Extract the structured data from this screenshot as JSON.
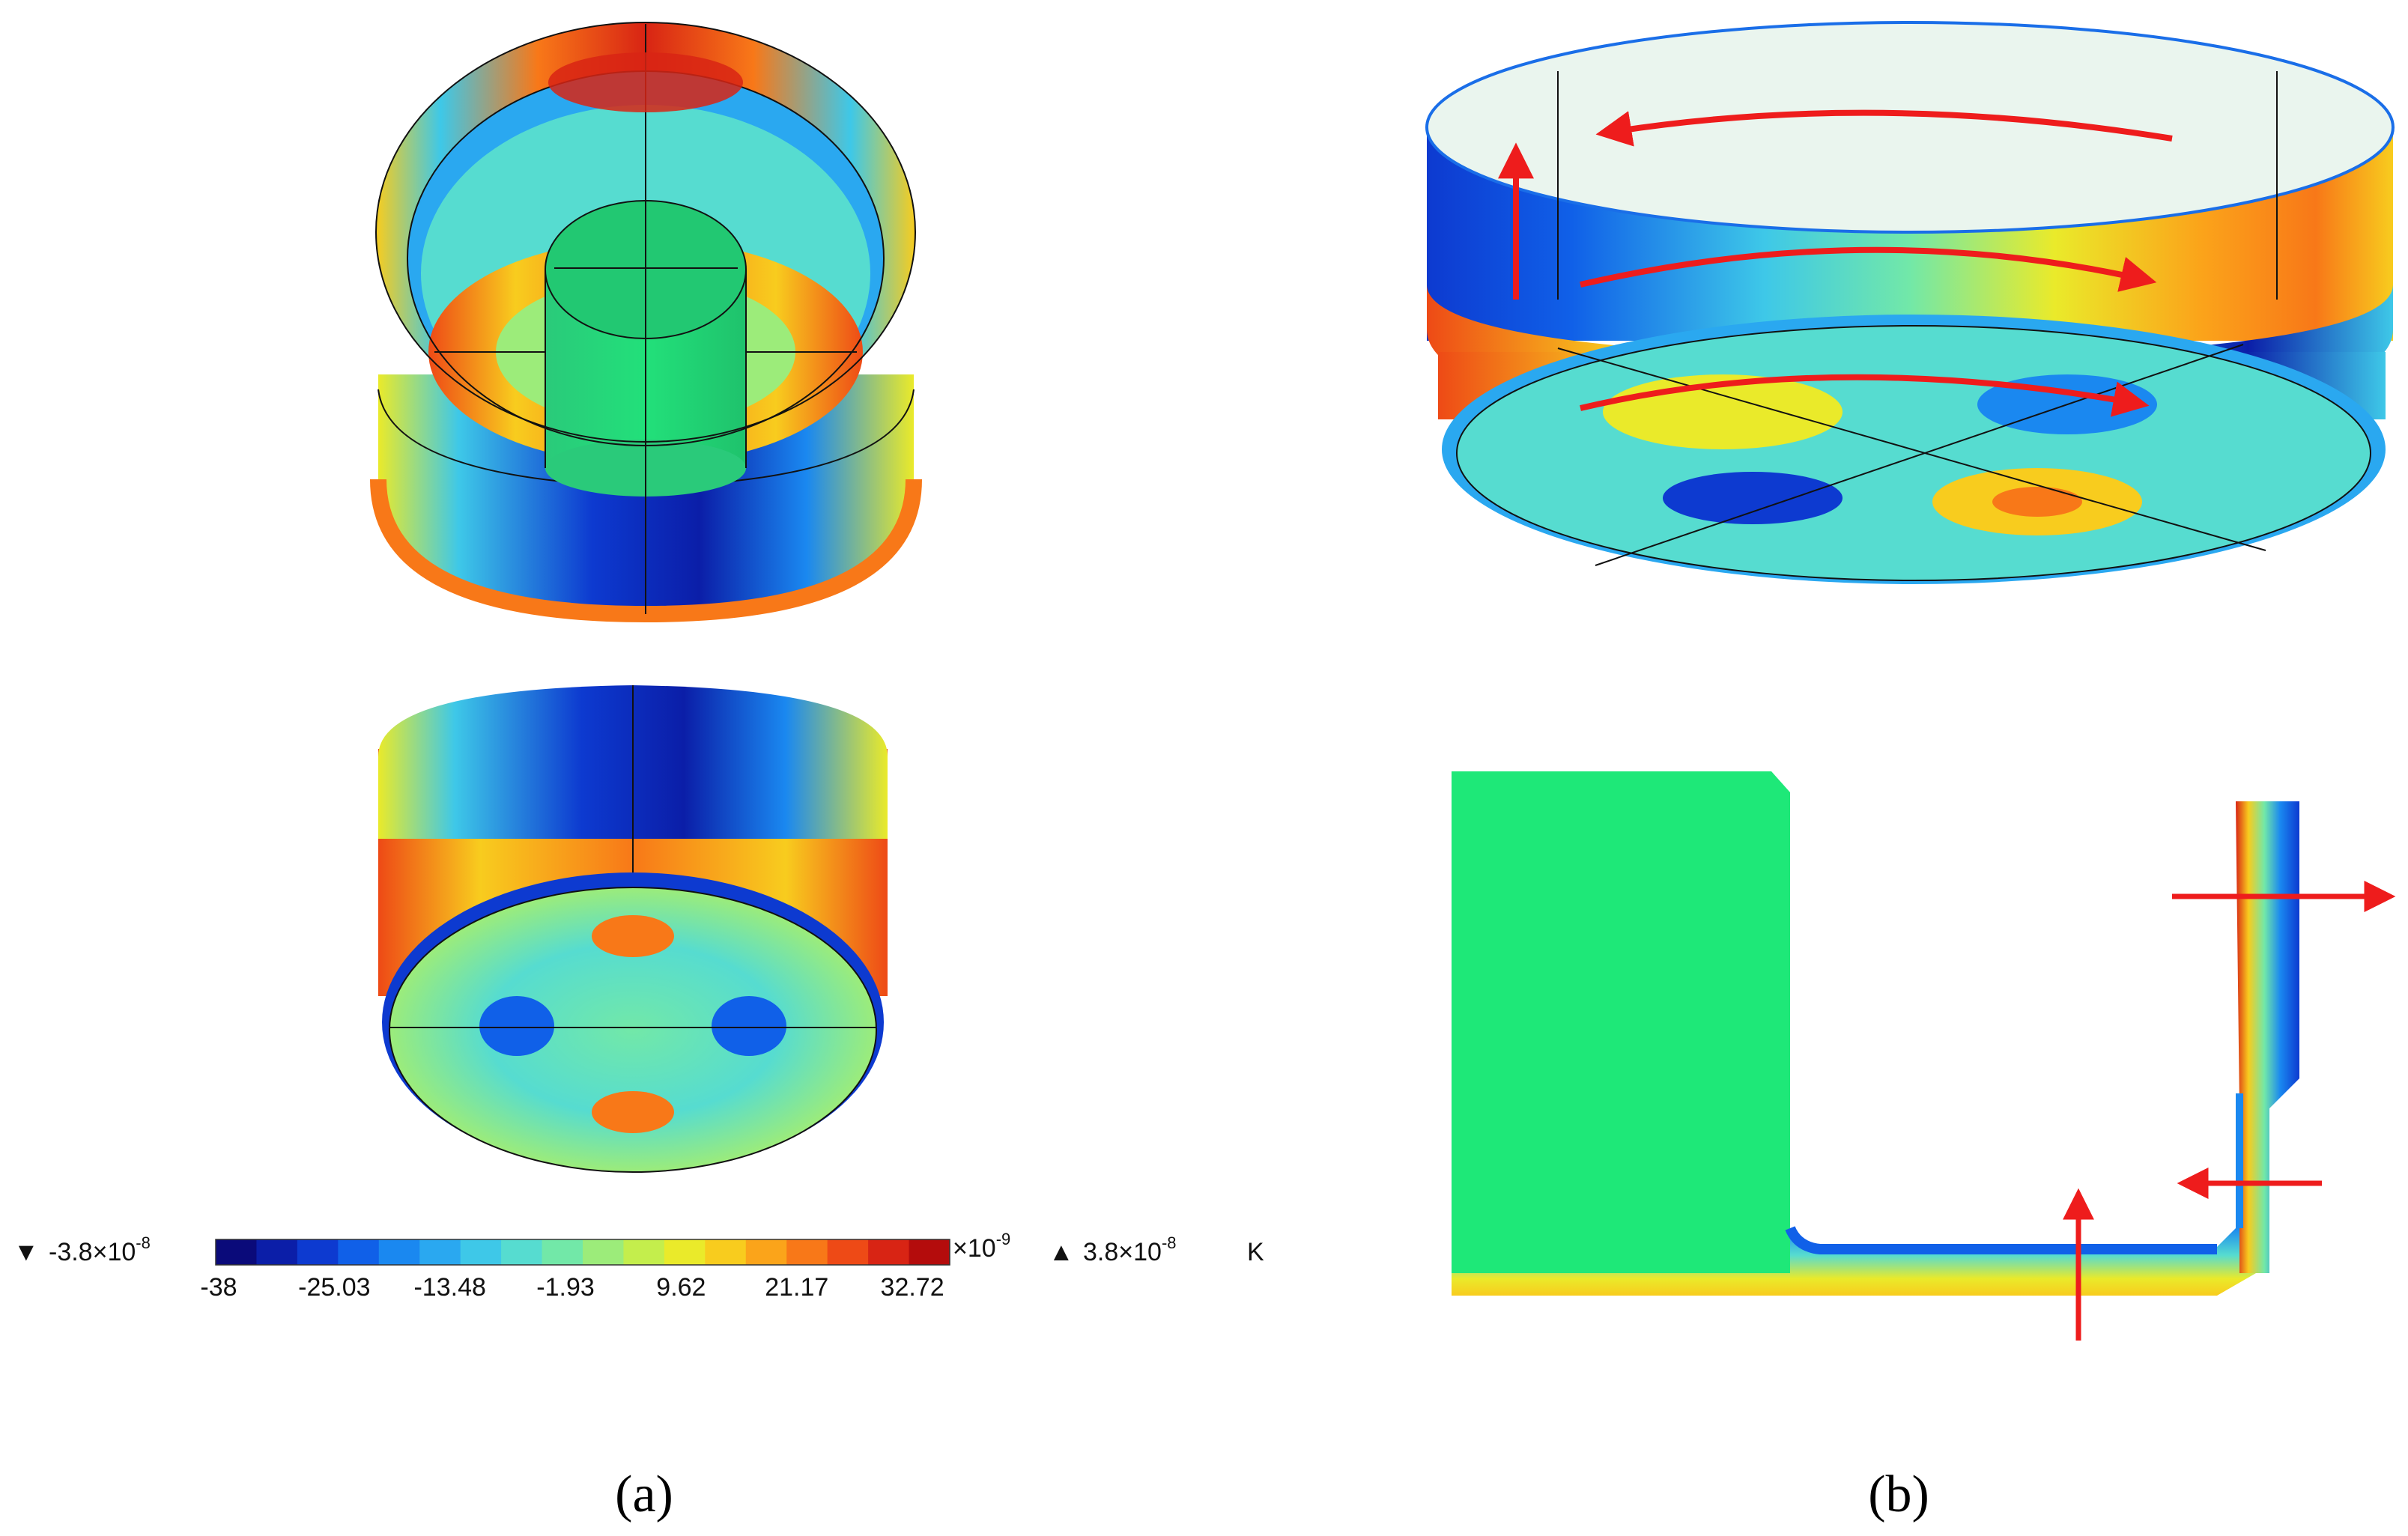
{
  "panels": [
    {
      "id": "a",
      "label": "(a)"
    },
    {
      "id": "b",
      "label": "(b)"
    }
  ],
  "colorbar": {
    "min_text": "-3.8×10",
    "min_exp": "-8",
    "max_text": "3.8×10",
    "max_exp": "-8",
    "multiplier_text": "×10",
    "multiplier_exp": "-9",
    "unit": "K",
    "tick_labels": [
      "-38",
      "-25.03",
      "-13.48",
      "-1.93",
      "9.62",
      "21.17",
      "32.72"
    ],
    "colors": [
      "#0a0a7a",
      "#0b1ea8",
      "#0d3ad0",
      "#1060e8",
      "#1a88f0",
      "#2aa8f0",
      "#3ec8e8",
      "#56dcd0",
      "#72e8a8",
      "#9cec7a",
      "#c4ee4c",
      "#eaea2a",
      "#f8cc1e",
      "#fba41a",
      "#f87818",
      "#ee4a16",
      "#d82414",
      "#b40c0c"
    ]
  },
  "palette": {
    "deep_blue": "#0b1ea8",
    "blue": "#1a6ee8",
    "cyan": "#2ec8e6",
    "green": "#22e07a",
    "yellow": "#eaea2a",
    "orange": "#f88a18",
    "red": "#e02418",
    "arrow_red": "#ee1c1c"
  }
}
